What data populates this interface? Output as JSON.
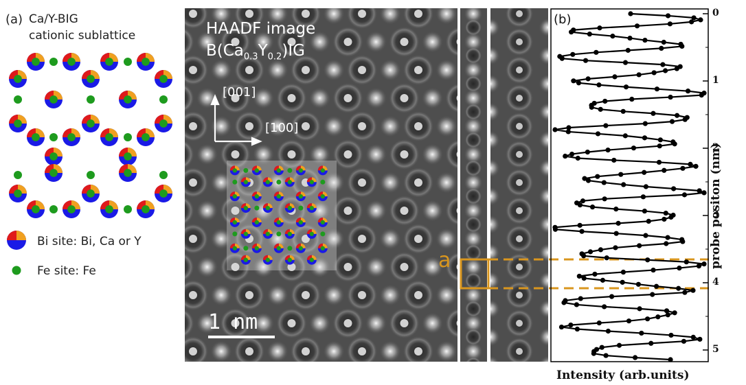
{
  "panel_a": {
    "label": "(a)",
    "title_line1": "Ca/Y-BIG",
    "title_line2": "cationic sublattice",
    "legend": [
      {
        "text": "Bi site: Bi, Ca or Y"
      },
      {
        "text": "Fe site: Fe"
      }
    ]
  },
  "colors": {
    "bi": "#1a1ae6",
    "ca": "#f0a020",
    "y": "#e01a1a",
    "fe": "#1e9b1e",
    "cell": "#d9961e"
  },
  "image": {
    "title": "HAADF image",
    "formula_prefix": "B(Ca",
    "formula_sub1": "0.3",
    "formula_mid": "Y",
    "formula_sub2": "0.2",
    "formula_suffix": ")IG",
    "dir_vertical": "[001]",
    "dir_horizontal": "[100]",
    "scale": "1 nm",
    "cell_label": "a"
  },
  "panel_b": {
    "label": "(b)",
    "xlabel": "Intensity (arb.units)",
    "ylabel": "probe positon (nm)",
    "ticks": [
      "0",
      "1",
      "2",
      "3",
      "4",
      "5"
    ]
  }
}
